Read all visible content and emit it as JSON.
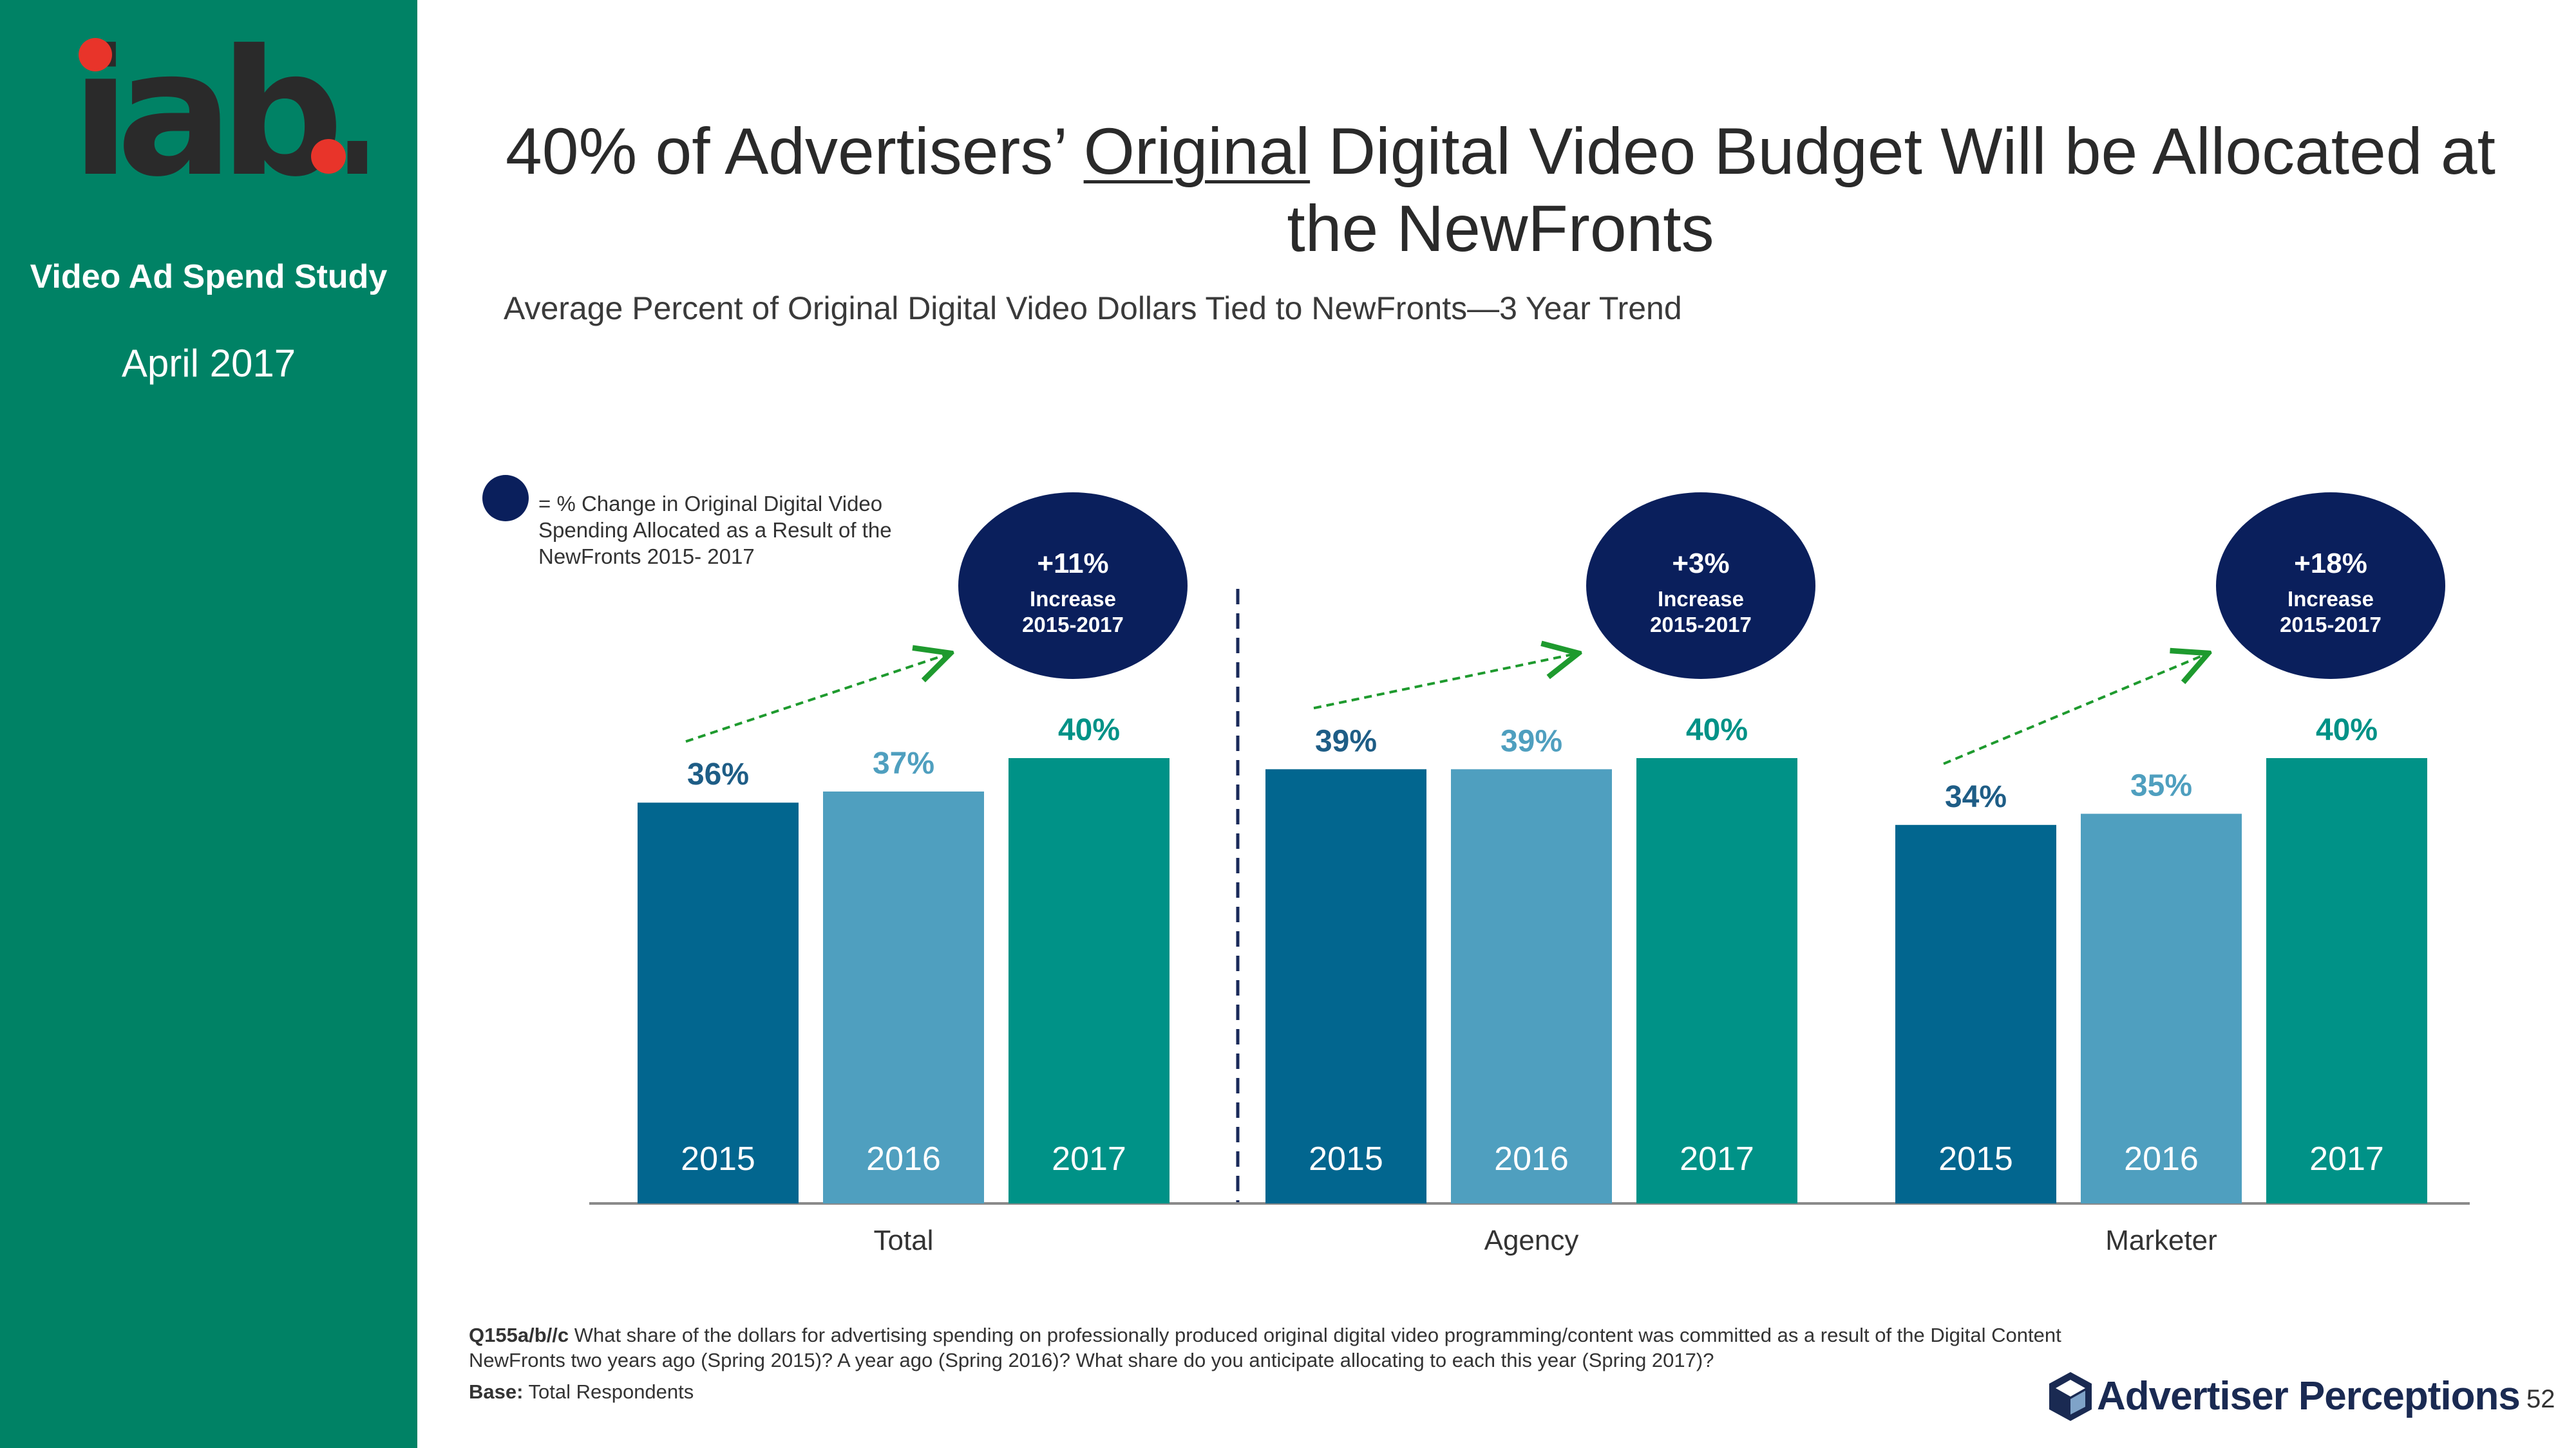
{
  "sidebar": {
    "logo_text": "iab.",
    "study_title": "Video Ad Spend Study",
    "date": "April 2017"
  },
  "header": {
    "title_before": "40% of Advertisers’ ",
    "title_underlined": "Original",
    "title_after": " Digital Video Budget Will be Allocated at the NewFronts",
    "subtitle": "Average Percent of Original Digital Video Dollars Tied to NewFronts—3 Year Trend"
  },
  "legend": {
    "text": "= % Change in Original Digital Video Spending Allocated as a Result of the NewFronts 2015- 2017"
  },
  "colors": {
    "sidebar": "#008265",
    "bar_2015": "#02668F",
    "bar_2016": "#4F9FBF",
    "bar_2017": "#009287",
    "bubble": "#0A1F5C",
    "label_2015": "#1E5D86",
    "label_2016": "#4F9FBF",
    "label_2017": "#009287",
    "arrow": "#1E9A2E"
  },
  "chart_data": {
    "type": "bar",
    "title": "Average Percent of Original Digital Video Dollars Tied to NewFronts—3 Year Trend",
    "categories": [
      "Total",
      "Agency",
      "Marketer"
    ],
    "series": [
      {
        "name": "2015",
        "values": [
          36,
          39,
          34
        ],
        "labels": [
          "36%",
          "39%",
          "34%"
        ]
      },
      {
        "name": "2016",
        "values": [
          37,
          39,
          35
        ],
        "labels": [
          "37%",
          "39%",
          "35%"
        ]
      },
      {
        "name": "2017",
        "values": [
          40,
          40,
          40
        ],
        "labels": [
          "40%",
          "40%",
          "40%"
        ]
      }
    ],
    "changes": [
      {
        "value": "+11%",
        "line1": "Increase",
        "line2": "2015-2017"
      },
      {
        "value": "+3%",
        "line1": "Increase",
        "line2": "2015-2017"
      },
      {
        "value": "+18%",
        "line1": "Increase",
        "line2": "2015-2017"
      }
    ],
    "xlabel": "",
    "ylabel": "",
    "ylim": [
      0,
      40
    ]
  },
  "footer": {
    "question_id": "Q155a/b//c",
    "question_text": " What share of the dollars for advertising spending on professionally produced original digital video programming/content was committed as a result of the Digital Content NewFronts two years ago (Spring 2015)?  A year ago (Spring 2016)? What share do you anticipate allocating to each this year (Spring 2017)?",
    "base_label": "Base:",
    "base_value": "  Total Respondents",
    "brand": "Advertiser Perceptions",
    "page_number": "52"
  }
}
